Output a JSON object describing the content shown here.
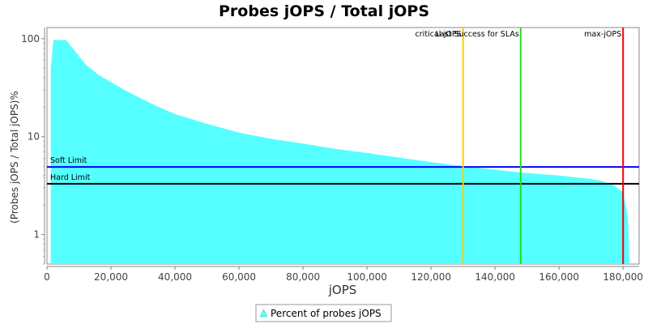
{
  "chart_data": {
    "type": "area",
    "title": "Probes jOPS / Total jOPS",
    "xlabel": "jOPS",
    "ylabel": "(Probes jOPS / Total jOPS)%",
    "x_scale": "linear",
    "y_scale": "log",
    "xlim": [
      0,
      185000
    ],
    "ylim": [
      0.5,
      130
    ],
    "x_ticks": [
      0,
      20000,
      40000,
      60000,
      80000,
      100000,
      120000,
      140000,
      160000,
      180000
    ],
    "x_tick_labels": [
      "0",
      "20,000",
      "40,000",
      "60,000",
      "80,000",
      "100,000",
      "120,000",
      "140,000",
      "160,000",
      "180,000"
    ],
    "y_ticks": [
      1,
      10,
      100
    ],
    "y_tick_labels": [
      "1",
      "10",
      "100"
    ],
    "grid": false,
    "legend_position": "bottom",
    "series": [
      {
        "name": "Percent of probes jOPS",
        "color": "#55ffff",
        "x": [
          1200,
          2000,
          6000,
          8000,
          12000,
          16000,
          20000,
          25000,
          30000,
          35000,
          40000,
          50000,
          60000,
          70000,
          80000,
          90000,
          100000,
          110000,
          120000,
          130000,
          140000,
          148000,
          160000,
          170000,
          173000,
          177000,
          180000,
          181500,
          182000
        ],
        "values": [
          50,
          97,
          97,
          80,
          55,
          43,
          36,
          29,
          24,
          20,
          17,
          13.5,
          11,
          9.5,
          8.5,
          7.5,
          6.8,
          6.1,
          5.5,
          5.0,
          4.6,
          4.3,
          4.0,
          3.7,
          3.55,
          3.2,
          2.7,
          1.5,
          0.5
        ]
      }
    ],
    "horizontal_lines": [
      {
        "label": "Soft Limit",
        "value": 4.9,
        "color": "#0000ff"
      },
      {
        "label": "Hard Limit",
        "value": 3.3,
        "color": "#000000"
      }
    ],
    "vertical_lines": [
      {
        "label": "critical-jOPS",
        "value": 130000,
        "color": "#ffcc00"
      },
      {
        "label": "Last Success for SLAs",
        "value": 148000,
        "color": "#22dd22"
      },
      {
        "label": "max-jOPS",
        "value": 180000,
        "color": "#ee0000"
      }
    ]
  }
}
